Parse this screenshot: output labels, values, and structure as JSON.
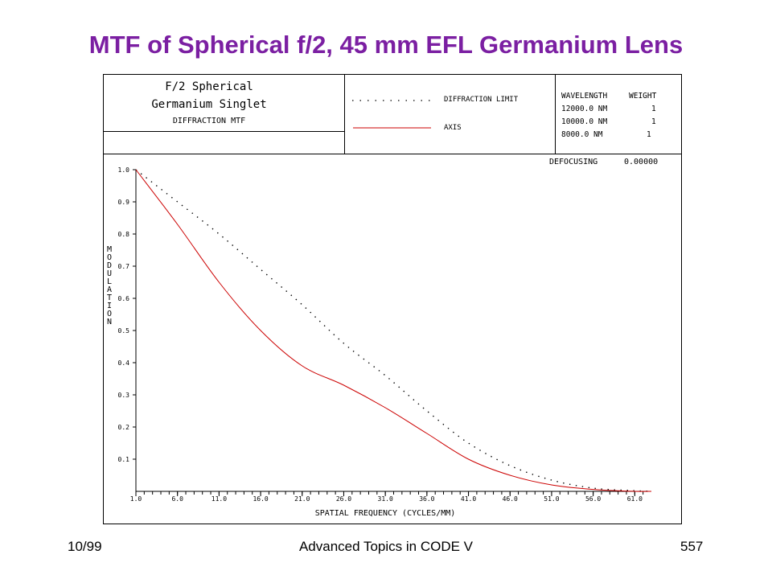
{
  "slide": {
    "title": "MTF of Spherical f/2, 45 mm EFL Germanium Lens",
    "footer_left": "10/99",
    "footer_center": "Advanced Topics in CODE V",
    "footer_right": "557"
  },
  "header": {
    "line1": "F/2 Spherical",
    "line2": "Germanium Singlet",
    "line3": "DIFFRACTION MTF",
    "legend": [
      {
        "label": "DIFFRACTION LIMIT",
        "style": "dotted",
        "color": "#000000"
      },
      {
        "label": "AXIS",
        "style": "solid",
        "color": "#cc0000"
      }
    ],
    "wavelength_header": "WAVELENGTH",
    "weight_header": "WEIGHT",
    "wavelengths": [
      {
        "wavelength": "12000.0 NM",
        "weight": "1"
      },
      {
        "wavelength": "10000.0 NM",
        "weight": "1"
      },
      {
        "wavelength": "8000.0 NM",
        "weight": "1"
      }
    ]
  },
  "defocus": {
    "label": "DEFOCUSING",
    "value": "0.00000"
  },
  "chart_data": {
    "type": "line",
    "xlabel": "SPATIAL FREQUENCY (CYCLES/MM)",
    "ylabel": "MODULATION",
    "xlim": [
      1.0,
      63.0
    ],
    "ylim": [
      0.0,
      1.0
    ],
    "x_ticks": [
      "1.0",
      "6.0",
      "11.0",
      "16.0",
      "21.0",
      "26.0",
      "31.0",
      "36.0",
      "41.0",
      "46.0",
      "51.0",
      "56.0",
      "61.0"
    ],
    "y_ticks": [
      "0.1",
      "0.2",
      "0.3",
      "0.4",
      "0.5",
      "0.6",
      "0.7",
      "0.8",
      "0.9",
      "1.0"
    ],
    "series": [
      {
        "name": "DIFFRACTION LIMIT",
        "style": "dotted",
        "color": "#000000",
        "x": [
          1,
          6,
          11,
          16,
          21,
          26,
          31,
          36,
          41,
          46,
          51,
          56,
          61,
          63
        ],
        "y": [
          1.0,
          0.9,
          0.8,
          0.69,
          0.58,
          0.46,
          0.36,
          0.25,
          0.15,
          0.08,
          0.035,
          0.01,
          0.002,
          0.0
        ]
      },
      {
        "name": "AXIS",
        "style": "solid",
        "color": "#cc0000",
        "x": [
          1,
          6,
          11,
          16,
          21,
          26,
          31,
          36,
          41,
          46,
          51,
          56,
          61,
          63
        ],
        "y": [
          1.0,
          0.83,
          0.65,
          0.5,
          0.39,
          0.33,
          0.26,
          0.18,
          0.1,
          0.05,
          0.02,
          0.006,
          0.0,
          0.0
        ]
      }
    ]
  }
}
